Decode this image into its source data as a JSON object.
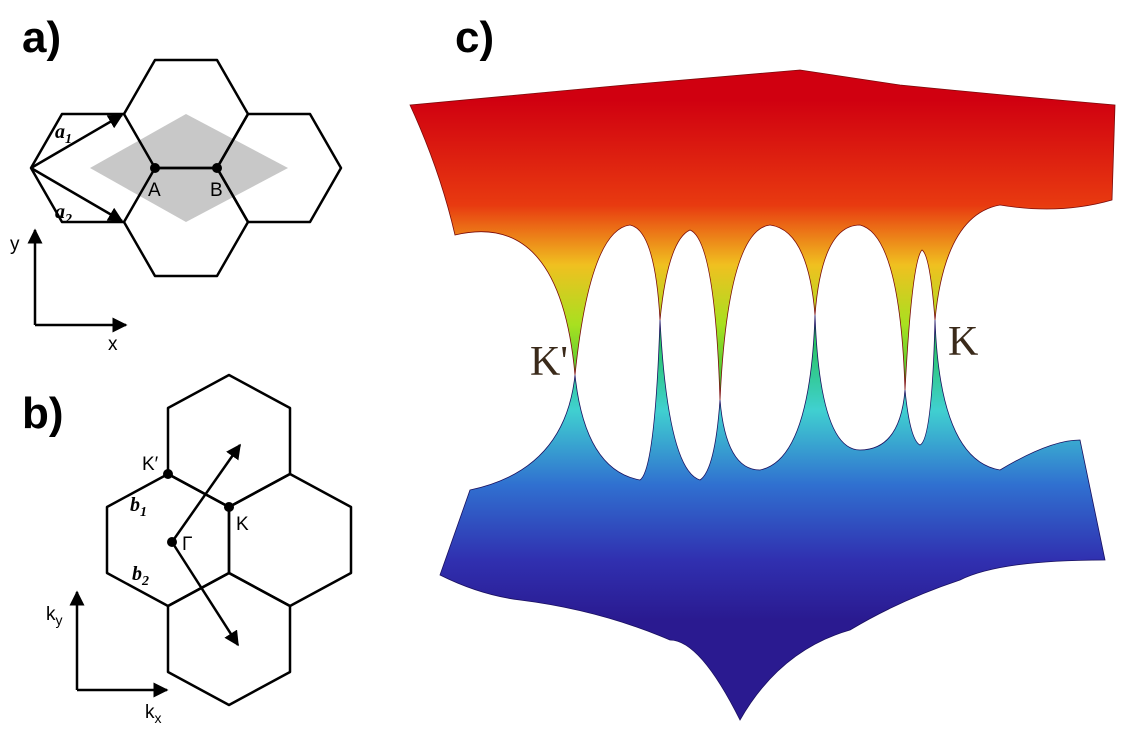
{
  "panel_a": {
    "label": "a)",
    "vectors": [
      {
        "base": "a",
        "sub": "1"
      },
      {
        "base": "a",
        "sub": "2"
      }
    ],
    "sites": [
      "A",
      "B"
    ],
    "axes": [
      "y",
      "x"
    ]
  },
  "panel_b": {
    "label": "b)",
    "points": [
      "K′",
      "K",
      "Γ"
    ],
    "vectors": [
      {
        "base": "b",
        "sub": "1"
      },
      {
        "base": "b",
        "sub": "2"
      }
    ],
    "axes": [
      {
        "base": "k",
        "sub": "y"
      },
      {
        "base": "k",
        "sub": "x"
      }
    ]
  },
  "panel_c": {
    "label": "c)",
    "points": [
      "K'",
      "K"
    ]
  }
}
